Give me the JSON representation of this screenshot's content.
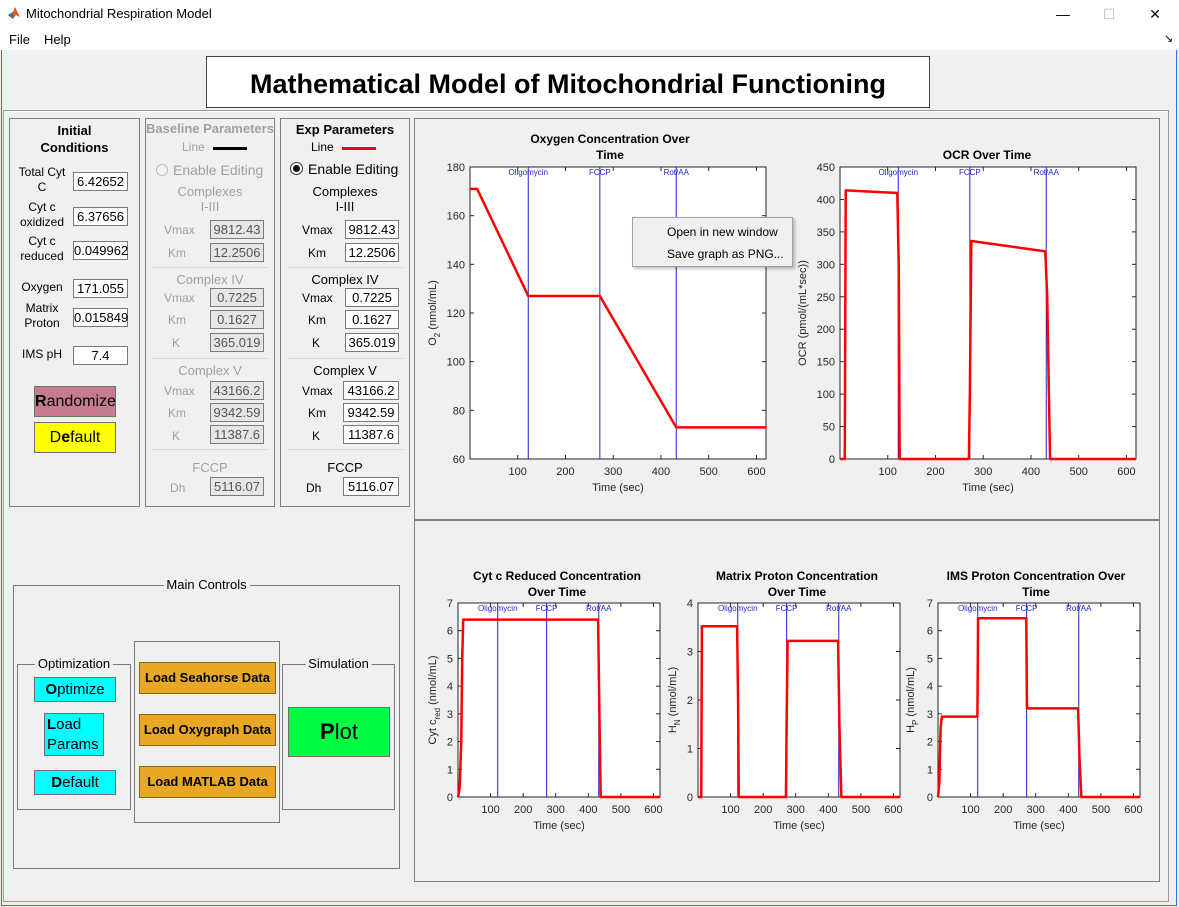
{
  "window": {
    "title": "Mitochondrial Respiration Model",
    "minimize": "—",
    "maximize": "☐",
    "close": "✕"
  },
  "menu": {
    "file": "File",
    "help": "Help",
    "toolbar_arrow": "↘"
  },
  "main_title": "Mathematical Model of Mitochondrial Functioning",
  "initial_conditions": {
    "title_line1": "Initial",
    "title_line2": "Conditions",
    "fields": [
      {
        "label1": "Total Cyt",
        "label2": "C",
        "value": "6.42652"
      },
      {
        "label1": "Cyt c",
        "label2": "oxidized",
        "value": "6.37656"
      },
      {
        "label1": "Cyt c",
        "label2": "reduced",
        "value": "0.049962"
      },
      {
        "label1": "Oxygen",
        "label2": "",
        "value": "171.055"
      },
      {
        "label1": "Matrix",
        "label2": "Proton",
        "value": "0.015849"
      },
      {
        "label1": "IMS pH",
        "label2": "",
        "value": "7.4"
      }
    ],
    "randomize_r": "R",
    "randomize_rest": "andomize",
    "default_d": "D",
    "default_pre": "",
    "default_label_full": "Default",
    "default_e": "e",
    "default_rest": "fault"
  },
  "baseline": {
    "title": "Baseline Parameters",
    "line_label": "Line",
    "line_color": "#000000",
    "enable_editing": "Enable Editing",
    "complexes_l1": "Complexes",
    "complexes_l2": "I-III",
    "vmax_label": "Vmax",
    "vmax": "9812.43",
    "km_label": "Km",
    "km": "12.2506",
    "c4_title": "Complex IV",
    "c4_vmax": "0.7225",
    "c4_km": "0.1627",
    "c4_k_label": "K",
    "c4_k": "365.019",
    "c5_title": "Complex V",
    "c5_vmax": "43166.2",
    "c5_km": "9342.59",
    "c5_k": "11387.6",
    "fccp_title": "FCCP",
    "dh_label": "Dh",
    "dh": "5116.07"
  },
  "exp": {
    "title": "Exp Parameters",
    "line_label": "Line",
    "line_color": "#ff0000",
    "enable_editing": "Enable Editing",
    "complexes_l1": "Complexes",
    "complexes_l2": "I-III",
    "vmax_label": "Vmax",
    "vmax": "9812.43",
    "km_label": "Km",
    "km": "12.2506",
    "c4_title": "Complex IV",
    "c4_vmax": "0.7225",
    "c4_km": "0.1627",
    "c4_k_label": "K",
    "c4_k": "365.019",
    "c5_title": "Complex V",
    "c5_vmax": "43166.2",
    "c5_km": "9342.59",
    "c5_k": "11387.6",
    "fccp_title": "FCCP",
    "dh_label": "Dh",
    "dh": "5116.07"
  },
  "main_controls": {
    "title": "Main Controls",
    "optimization_title": "Optimization",
    "optimize_o": "O",
    "optimize_rest": "ptimize",
    "load_l": "L",
    "load_rest": "oad",
    "params": "Params",
    "default_d": "D",
    "default_rest": "efault",
    "load_seahorse": "Load Seahorse Data",
    "load_oxygraph": "Load Oxygraph Data",
    "load_matlab": "Load MATLAB Data",
    "simulation_title": "Simulation",
    "plot_p": "P",
    "plot_rest": "lot"
  },
  "context_menu": {
    "open_new": "Open in new window",
    "save_png": "Save graph as PNG..."
  },
  "colors": {
    "accent_window": "#1f7bd8",
    "randomize_bg": "#c47c8e",
    "default_bg": "#ffff00",
    "cyan_btn": "#00ffff",
    "load_btn": "#e8a825",
    "plot_bg": "#00ff44",
    "curve": "#ff0000",
    "event_line": "#2222cc"
  },
  "chart_data": [
    {
      "type": "line",
      "title_l1": "Oxygen Concentration Over",
      "title_l2": "Time",
      "xlabel": "Time (sec)",
      "ylabel_main": "O",
      "ylabel_sub": "2",
      "ylabel_rest": " (nmol/mL)",
      "xlim": [
        0,
        620
      ],
      "ylim": [
        60,
        180
      ],
      "xticks": [
        100,
        200,
        300,
        400,
        500,
        600
      ],
      "yticks": [
        60,
        80,
        100,
        120,
        140,
        160,
        180
      ],
      "events": [
        {
          "t": 122,
          "label": "Oligomycin"
        },
        {
          "t": 272,
          "label": "FCCP"
        },
        {
          "t": 432,
          "label": "Rot/AA"
        }
      ],
      "series": [
        {
          "x": [
            0,
            15,
            122,
            272,
            432,
            620
          ],
          "y": [
            171,
            171,
            127,
            127,
            73,
            73
          ]
        }
      ]
    },
    {
      "type": "line",
      "title_l1": "OCR Over Time",
      "title_l2": "",
      "xlabel": "Time (sec)",
      "ylabel_main": "OCR (pmol/(mL*sec))",
      "ylabel_sub": "",
      "ylabel_rest": "",
      "xlim": [
        0,
        620
      ],
      "ylim": [
        0,
        450
      ],
      "xticks": [
        100,
        200,
        300,
        400,
        500,
        600
      ],
      "yticks": [
        0,
        50,
        100,
        150,
        200,
        250,
        300,
        350,
        400,
        450
      ],
      "events": [
        {
          "t": 122,
          "label": "Oligomycin"
        },
        {
          "t": 272,
          "label": "FCCP"
        },
        {
          "t": 432,
          "label": "Rot/AA"
        }
      ],
      "series": [
        {
          "x": [
            0,
            10,
            12,
            120,
            123,
            125,
            270,
            272,
            275,
            430,
            434,
            440,
            620
          ],
          "y": [
            0,
            0,
            414,
            410,
            300,
            0,
            0,
            100,
            336,
            320,
            250,
            0,
            0
          ]
        }
      ]
    },
    {
      "type": "line",
      "title_l1": "Cyt c Reduced Concentration",
      "title_l2": "Over Time",
      "xlabel": "Time (sec)",
      "ylabel_main": "Cyt c",
      "ylabel_sub": "red",
      "ylabel_rest": " (nmol/mL)",
      "xlim": [
        0,
        620
      ],
      "ylim": [
        0,
        7
      ],
      "xticks": [
        100,
        200,
        300,
        400,
        500,
        600
      ],
      "yticks": [
        0,
        1,
        2,
        3,
        4,
        5,
        6,
        7
      ],
      "events": [
        {
          "t": 122,
          "label": "Oligomycin"
        },
        {
          "t": 272,
          "label": "FCCP"
        },
        {
          "t": 432,
          "label": "Rot/AA"
        }
      ],
      "series": [
        {
          "x": [
            0,
            5,
            10,
            13,
            16,
            430,
            434,
            438,
            620
          ],
          "y": [
            0,
            0.3,
            2,
            5,
            6.4,
            6.4,
            3,
            0,
            0
          ]
        }
      ]
    },
    {
      "type": "line",
      "title_l1": "Matrix Proton Concentration",
      "title_l2": "Over Time",
      "xlabel": "Time (sec)",
      "ylabel_main": "H",
      "ylabel_sub": "N",
      "ylabel_rest": " (nmol/mL)",
      "xlim": [
        0,
        620
      ],
      "ylim": [
        0,
        4
      ],
      "xticks": [
        100,
        200,
        300,
        400,
        500,
        600
      ],
      "yticks": [
        0,
        1,
        2,
        3,
        4
      ],
      "events": [
        {
          "t": 122,
          "label": "Oligomycin"
        },
        {
          "t": 272,
          "label": "FCCP"
        },
        {
          "t": 432,
          "label": "Rot/AA"
        }
      ],
      "series": [
        {
          "x": [
            0,
            10,
            12,
            120,
            123,
            125,
            270,
            272,
            275,
            430,
            434,
            440,
            620
          ],
          "y": [
            0,
            0,
            3.52,
            3.52,
            2,
            0,
            0,
            1.5,
            3.22,
            3.22,
            1.5,
            0,
            0
          ]
        }
      ]
    },
    {
      "type": "line",
      "title_l1": "IMS Proton Concentration Over",
      "title_l2": "Time",
      "xlabel": "Time (sec)",
      "ylabel_main": "H",
      "ylabel_sub": "P",
      "ylabel_rest": " (nmol/mL)",
      "xlim": [
        0,
        620
      ],
      "ylim": [
        0,
        7
      ],
      "xticks": [
        100,
        200,
        300,
        400,
        500,
        600
      ],
      "yticks": [
        0,
        1,
        2,
        3,
        4,
        5,
        6,
        7
      ],
      "events": [
        {
          "t": 122,
          "label": "Oligomycin"
        },
        {
          "t": 272,
          "label": "FCCP"
        },
        {
          "t": 432,
          "label": "Rot/AA"
        }
      ],
      "series": [
        {
          "x": [
            0,
            4,
            8,
            12,
            121,
            123,
            271,
            273,
            430,
            434,
            440,
            620
          ],
          "y": [
            0,
            0.5,
            2.5,
            2.9,
            2.9,
            6.45,
            6.45,
            3.2,
            3.2,
            1.5,
            0,
            0
          ]
        }
      ]
    }
  ]
}
